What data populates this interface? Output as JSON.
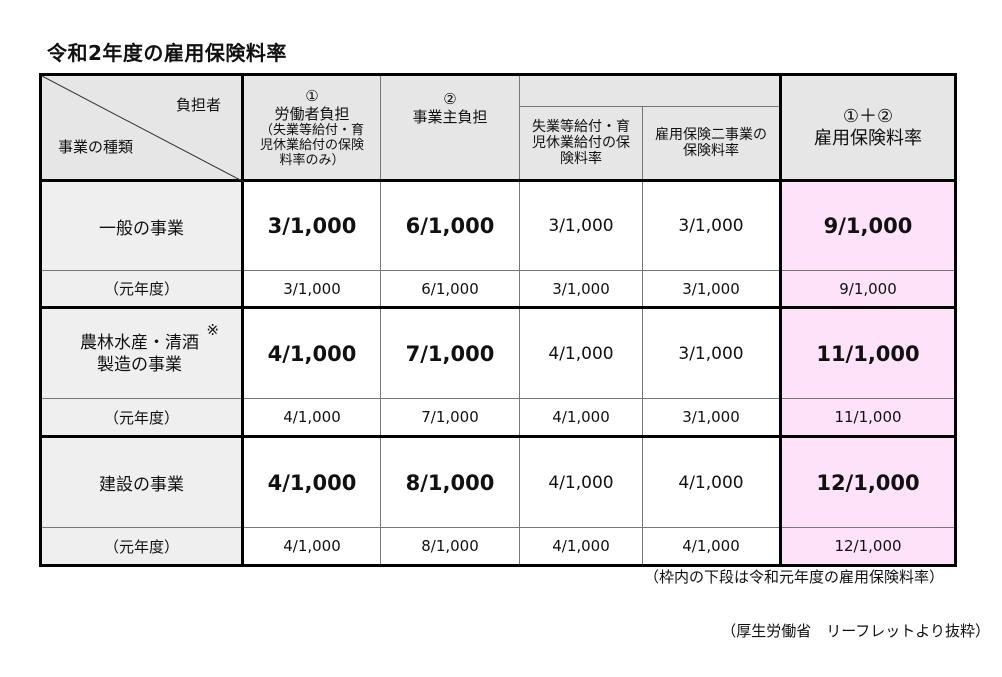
{
  "title": "令和2年度の雇用保険料率",
  "header": {
    "burden": "負担者",
    "kind": "事業の種類",
    "col1_num": "①",
    "col1_label": "労働者負担",
    "col1_sub": "（失業等給付・育児休業給付の保険料率のみ）",
    "col2_num": "②",
    "col2_label": "事業主負担",
    "col2a": "失業等給付・育児休業給付の保険料率",
    "col2b": "雇用保険二事業の保険料率",
    "col3_num": "①＋②",
    "col3_label": "雇用保険料率"
  },
  "rows": [
    {
      "name": "一般の事業",
      "note": "",
      "current": [
        "3/1,000",
        "6/1,000",
        "3/1,000",
        "3/1,000",
        "9/1,000"
      ],
      "prev_label": "（元年度）",
      "prev": [
        "3/1,000",
        "6/1,000",
        "3/1,000",
        "3/1,000",
        "9/1,000"
      ]
    },
    {
      "name": "農林水産・清酒製造の事業",
      "note": "※",
      "current": [
        "4/1,000",
        "7/1,000",
        "4/1,000",
        "3/1,000",
        "11/1,000"
      ],
      "prev_label": "（元年度）",
      "prev": [
        "4/1,000",
        "7/1,000",
        "4/1,000",
        "3/1,000",
        "11/1,000"
      ]
    },
    {
      "name": "建設の事業",
      "note": "",
      "current": [
        "4/1,000",
        "8/1,000",
        "4/1,000",
        "4/1,000",
        "12/1,000"
      ],
      "prev_label": "（元年度）",
      "prev": [
        "4/1,000",
        "8/1,000",
        "4/1,000",
        "4/1,000",
        "12/1,000"
      ]
    }
  ],
  "footnote": "（枠内の下段は令和元年度の雇用保険料率）",
  "source": "（厚生労働省　リーフレットより抜粋）"
}
